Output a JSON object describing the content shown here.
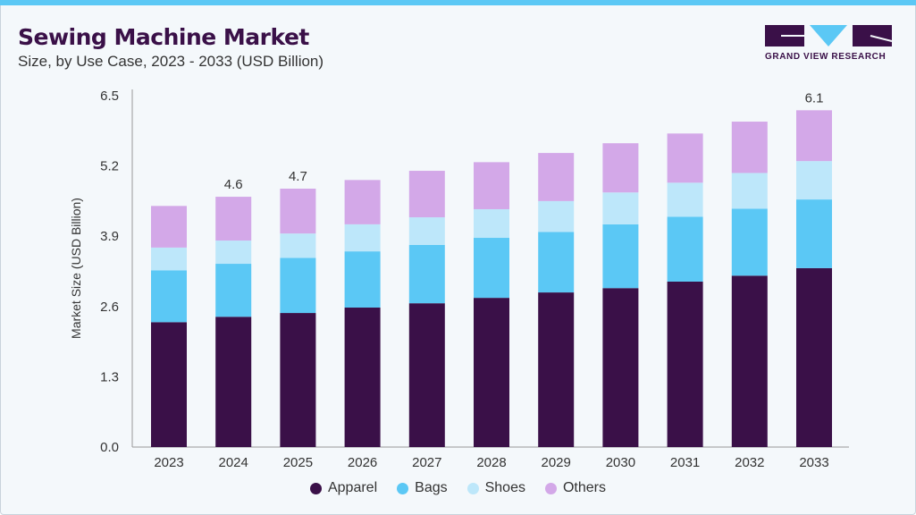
{
  "title": "Sewing Machine Market",
  "subtitle": "Size, by Use Case, 2023 - 2033 (USD Billion)",
  "logo_text": "GRAND VIEW RESEARCH",
  "chart_data": {
    "type": "bar",
    "stacked": true,
    "ylabel": "Market Size (USD Billion)",
    "ylim": [
      0,
      6.5
    ],
    "yticks": [
      "0.0",
      "1.3",
      "2.6",
      "3.9",
      "5.2",
      "6.5"
    ],
    "categories": [
      "2023",
      "2024",
      "2025",
      "2026",
      "2027",
      "2028",
      "2029",
      "2030",
      "2031",
      "2032",
      "2033"
    ],
    "series": [
      {
        "name": "Apparel",
        "color": "#3a1048",
        "values": [
          2.31,
          2.41,
          2.48,
          2.58,
          2.66,
          2.76,
          2.86,
          2.94,
          3.06,
          3.17,
          3.31
        ]
      },
      {
        "name": "Bags",
        "color": "#5bc8f5",
        "values": [
          0.96,
          0.98,
          1.02,
          1.04,
          1.08,
          1.11,
          1.12,
          1.18,
          1.2,
          1.24,
          1.27
        ]
      },
      {
        "name": "Shoes",
        "color": "#bde7fa",
        "values": [
          0.42,
          0.43,
          0.45,
          0.5,
          0.51,
          0.53,
          0.57,
          0.59,
          0.63,
          0.66,
          0.71
        ]
      },
      {
        "name": "Others",
        "color": "#d3a8e8",
        "values": [
          0.77,
          0.81,
          0.83,
          0.82,
          0.86,
          0.87,
          0.89,
          0.91,
          0.91,
          0.95,
          0.94
        ]
      }
    ],
    "data_labels": [
      {
        "category": "2024",
        "text": "4.6"
      },
      {
        "category": "2025",
        "text": "4.7"
      },
      {
        "category": "2033",
        "text": "6.1"
      }
    ],
    "legend_position": "bottom",
    "grid": false
  }
}
